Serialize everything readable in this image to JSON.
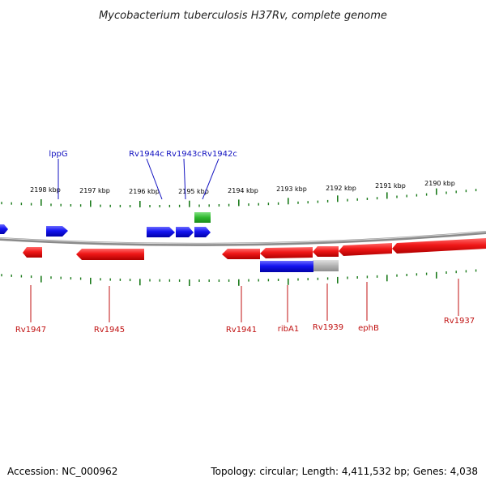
{
  "title": "Mycobacterium tuberculosis H37Rv, complete genome",
  "footer": {
    "accession": "Accession: NC_000962",
    "summary": "Topology: circular; Length: 4,411,532 bp; Genes: 4,038"
  },
  "colors": {
    "forward_gene": "#1010e0",
    "reverse_gene": "#e01010",
    "rna_gene": "#30b030",
    "pseudo_gene": "#b0b0b0",
    "backbone": "#8a8a8a",
    "ticks": "#1a7a1a",
    "label_forward": "#1010c0",
    "label_reverse": "#c01010"
  },
  "scale_labels": [
    "2198 kbp",
    "2197 kbp",
    "2196 kbp",
    "2195 kbp",
    "2194 kbp",
    "2193 kbp",
    "2192 kbp",
    "2191 kbp",
    "2190 kbp"
  ],
  "gene_labels_top": [
    "lppG",
    "Rv1944c",
    "Rv1943c",
    "Rv1942c"
  ],
  "gene_labels_bottom": [
    "Rv1947",
    "Rv1945",
    "Rv1941",
    "ribA1",
    "Rv1939",
    "ephB",
    "Rv1937"
  ]
}
